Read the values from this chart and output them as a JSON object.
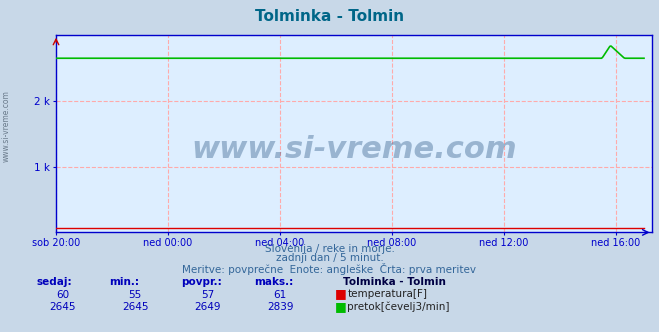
{
  "title": "Tolminka - Tolmin",
  "title_color": "#006688",
  "bg_color": "#c8d8e8",
  "plot_bg_color": "#ddeeff",
  "grid_color": "#ffaaaa",
  "axis_color": "#0000cc",
  "arrow_color": "#cc0000",
  "xlabel_ticks": [
    "sob 20:00",
    "ned 00:00",
    "ned 04:00",
    "ned 08:00",
    "ned 12:00",
    "ned 16:00"
  ],
  "xtick_positions": [
    0,
    4,
    8,
    12,
    16,
    20
  ],
  "xlim": [
    0,
    21.3
  ],
  "ylim": [
    0,
    3000
  ],
  "ytick_positions": [
    1000,
    2000
  ],
  "ytick_labels": [
    "1 k",
    "2 k"
  ],
  "temp_value": 60,
  "temp_min": 55,
  "temp_avg": 57,
  "temp_max": 61,
  "flow_base": 2645,
  "flow_spike_height": 2839,
  "flow_spike_x_start": 19.5,
  "flow_spike_x_peak": 19.8,
  "flow_spike_x_end": 20.3,
  "temp_color": "#dd0000",
  "flow_color": "#00bb00",
  "footer_line1": "Slovenija / reke in morje.",
  "footer_line2": "zadnji dan / 5 minut.",
  "footer_line3": "Meritve: povprečne  Enote: angleške  Črta: prva meritev",
  "footer_color": "#336699",
  "watermark_text": "www.si-vreme.com",
  "watermark_color": "#1a4a7a",
  "watermark_alpha": 0.35,
  "left_text": "www.si-vreme.com",
  "table_header_color": "#0000bb",
  "table_value_color": "#0000bb",
  "station_name_color": "#000044"
}
